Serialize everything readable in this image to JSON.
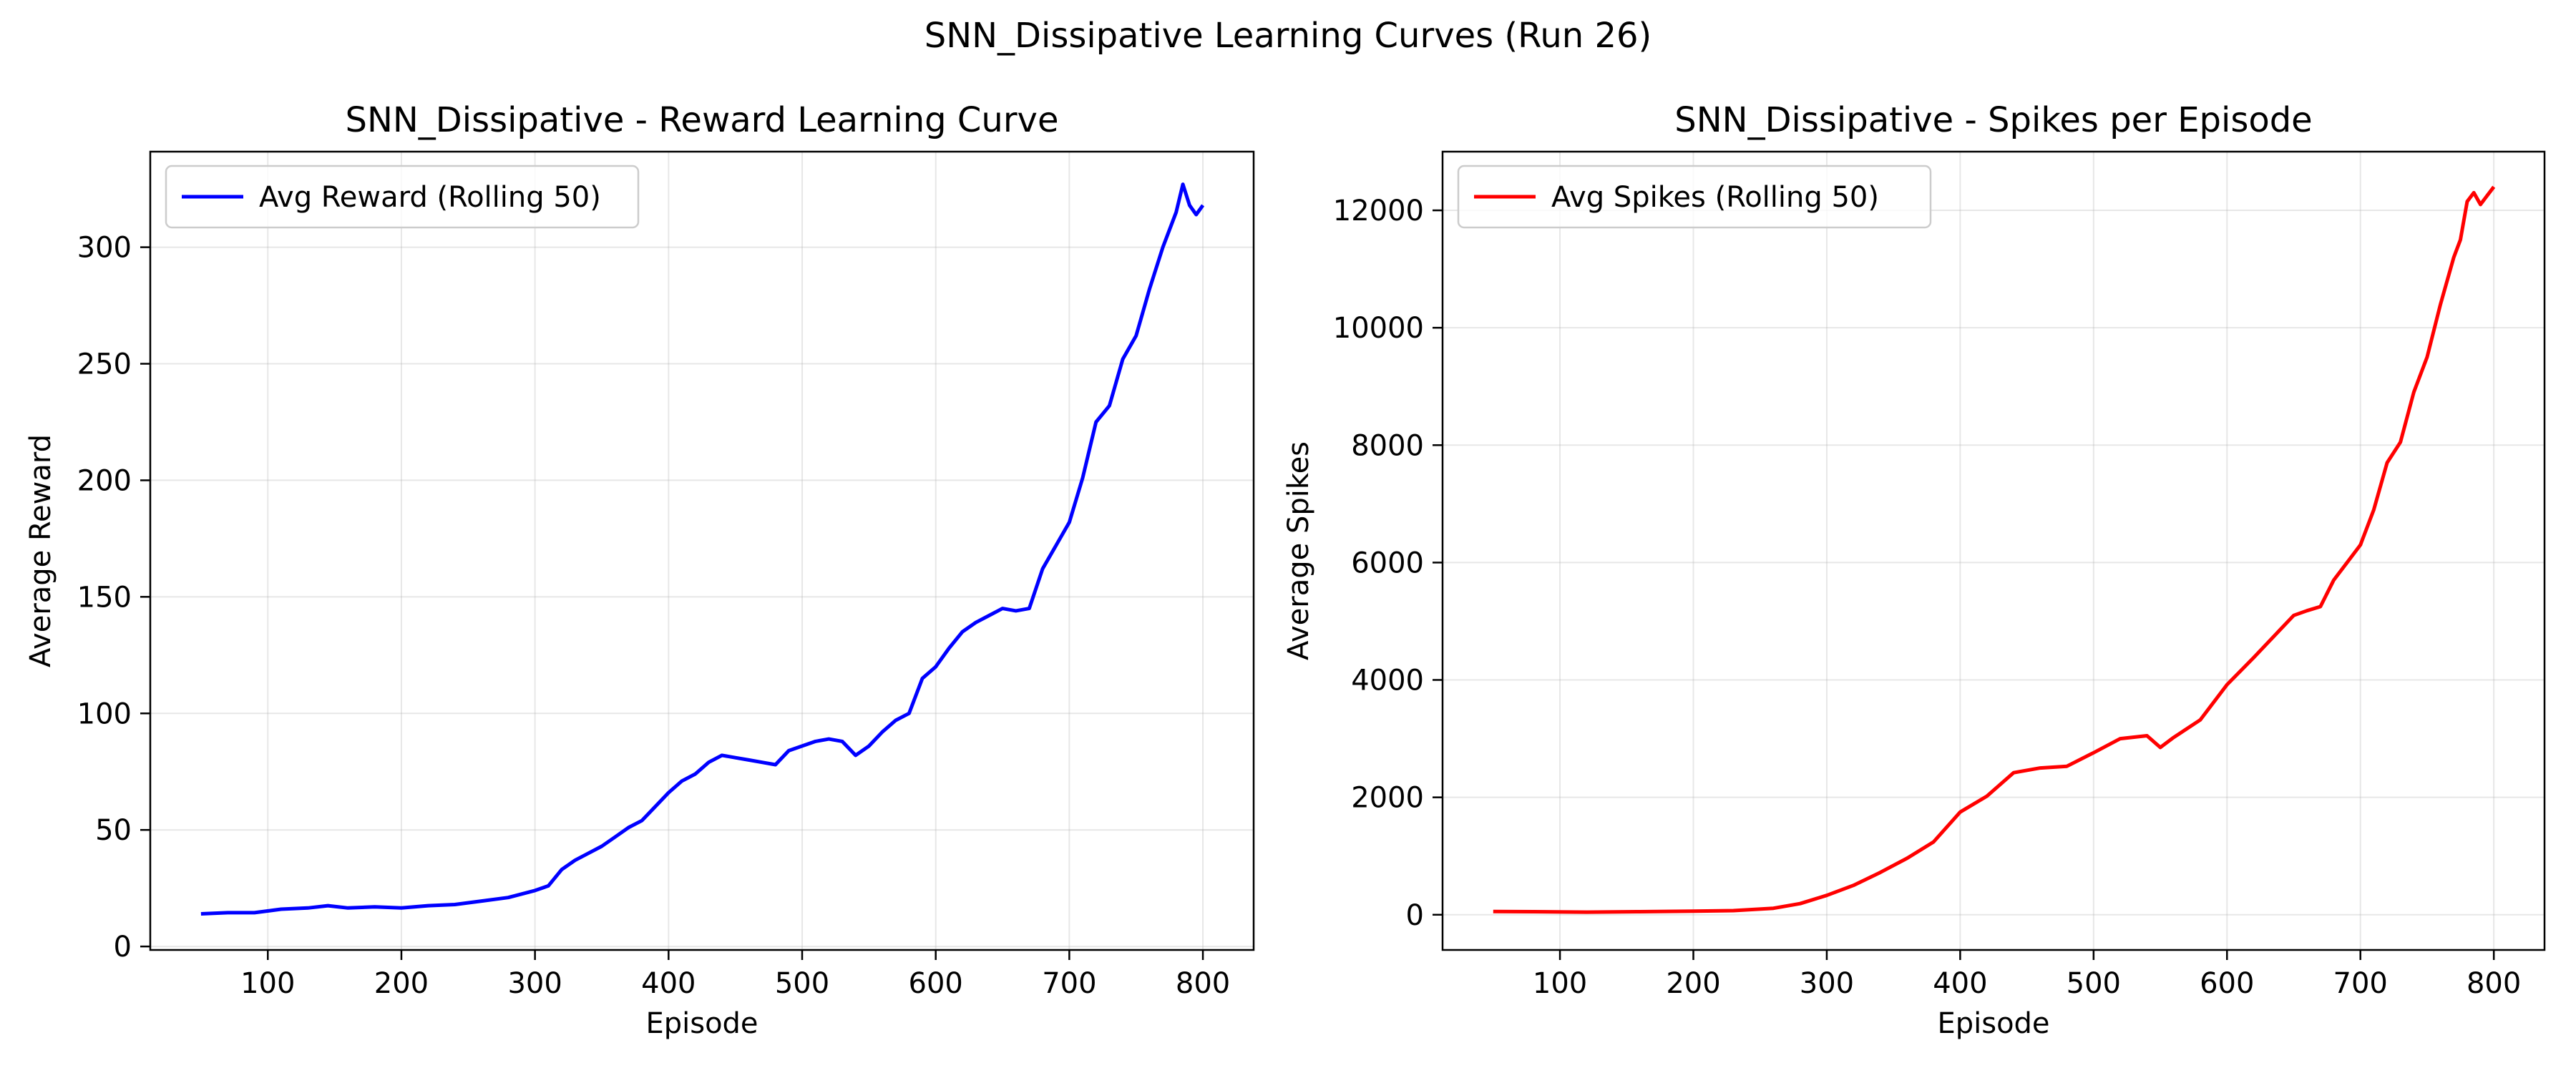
{
  "figure": {
    "suptitle": "SNN_Dissipative Learning Curves (Run 26)"
  },
  "chart_data": [
    {
      "type": "line",
      "title": "SNN_Dissipative - Reward Learning Curve",
      "xlabel": "Episode",
      "ylabel": "Average Reward",
      "xlim": [
        12,
        838
      ],
      "ylim": [
        -1.5,
        341
      ],
      "xticks": [
        100,
        200,
        300,
        400,
        500,
        600,
        700,
        800
      ],
      "yticks": [
        0,
        50,
        100,
        150,
        200,
        250,
        300
      ],
      "grid": true,
      "legend_position": "upper-left",
      "series": [
        {
          "name": "Avg Reward (Rolling 50)",
          "color": "#0000ff",
          "points": [
            [
              50,
              14
            ],
            [
              70,
              14.5
            ],
            [
              90,
              14.5
            ],
            [
              110,
              16
            ],
            [
              130,
              16.5
            ],
            [
              145,
              17.5
            ],
            [
              160,
              16.5
            ],
            [
              180,
              17
            ],
            [
              200,
              16.5
            ],
            [
              220,
              17.5
            ],
            [
              240,
              18
            ],
            [
              260,
              19.5
            ],
            [
              280,
              21
            ],
            [
              300,
              24
            ],
            [
              310,
              26
            ],
            [
              320,
              33
            ],
            [
              330,
              37
            ],
            [
              340,
              40
            ],
            [
              350,
              43
            ],
            [
              360,
              47
            ],
            [
              370,
              51
            ],
            [
              380,
              54
            ],
            [
              390,
              60
            ],
            [
              400,
              66
            ],
            [
              410,
              71
            ],
            [
              420,
              74
            ],
            [
              430,
              79
            ],
            [
              440,
              82
            ],
            [
              450,
              81
            ],
            [
              460,
              80
            ],
            [
              470,
              79
            ],
            [
              480,
              78
            ],
            [
              490,
              84
            ],
            [
              500,
              86
            ],
            [
              510,
              88
            ],
            [
              520,
              89
            ],
            [
              530,
              88
            ],
            [
              540,
              82
            ],
            [
              550,
              86
            ],
            [
              560,
              92
            ],
            [
              570,
              97
            ],
            [
              580,
              100
            ],
            [
              590,
              115
            ],
            [
              600,
              120
            ],
            [
              610,
              128
            ],
            [
              620,
              135
            ],
            [
              630,
              139
            ],
            [
              640,
              142
            ],
            [
              650,
              145
            ],
            [
              660,
              144
            ],
            [
              670,
              145
            ],
            [
              680,
              162
            ],
            [
              690,
              172
            ],
            [
              700,
              182
            ],
            [
              710,
              201
            ],
            [
              720,
              225
            ],
            [
              730,
              232
            ],
            [
              740,
              252
            ],
            [
              750,
              262
            ],
            [
              760,
              282
            ],
            [
              770,
              300
            ],
            [
              780,
              315
            ],
            [
              785,
              327
            ],
            [
              790,
              318
            ],
            [
              795,
              314
            ],
            [
              800,
              318
            ]
          ]
        }
      ]
    },
    {
      "type": "line",
      "title": "SNN_Dissipative - Spikes per Episode",
      "xlabel": "Episode",
      "ylabel": "Average Spikes",
      "xlim": [
        12,
        838
      ],
      "ylim": [
        -600,
        13000
      ],
      "xticks": [
        100,
        200,
        300,
        400,
        500,
        600,
        700,
        800
      ],
      "yticks": [
        0,
        2000,
        4000,
        6000,
        8000,
        10000,
        12000
      ],
      "grid": true,
      "legend_position": "upper-left",
      "series": [
        {
          "name": "Avg Spikes (Rolling 50)",
          "color": "#ff0000",
          "points": [
            [
              50,
              55
            ],
            [
              80,
              52
            ],
            [
              120,
              45
            ],
            [
              160,
              52
            ],
            [
              200,
              60
            ],
            [
              230,
              70
            ],
            [
              260,
              110
            ],
            [
              280,
              190
            ],
            [
              300,
              330
            ],
            [
              320,
              500
            ],
            [
              340,
              720
            ],
            [
              360,
              960
            ],
            [
              380,
              1240
            ],
            [
              400,
              1750
            ],
            [
              420,
              2020
            ],
            [
              440,
              2420
            ],
            [
              460,
              2500
            ],
            [
              480,
              2530
            ],
            [
              500,
              2760
            ],
            [
              520,
              3000
            ],
            [
              540,
              3050
            ],
            [
              550,
              2850
            ],
            [
              560,
              3020
            ],
            [
              580,
              3320
            ],
            [
              600,
              3920
            ],
            [
              620,
              4380
            ],
            [
              640,
              4860
            ],
            [
              650,
              5100
            ],
            [
              660,
              5180
            ],
            [
              670,
              5250
            ],
            [
              680,
              5700
            ],
            [
              690,
              6000
            ],
            [
              700,
              6300
            ],
            [
              710,
              6900
            ],
            [
              720,
              7700
            ],
            [
              730,
              8050
            ],
            [
              740,
              8900
            ],
            [
              750,
              9500
            ],
            [
              760,
              10400
            ],
            [
              770,
              11200
            ],
            [
              775,
              11500
            ],
            [
              780,
              12150
            ],
            [
              785,
              12300
            ],
            [
              790,
              12100
            ],
            [
              795,
              12250
            ],
            [
              800,
              12400
            ]
          ]
        }
      ]
    }
  ]
}
